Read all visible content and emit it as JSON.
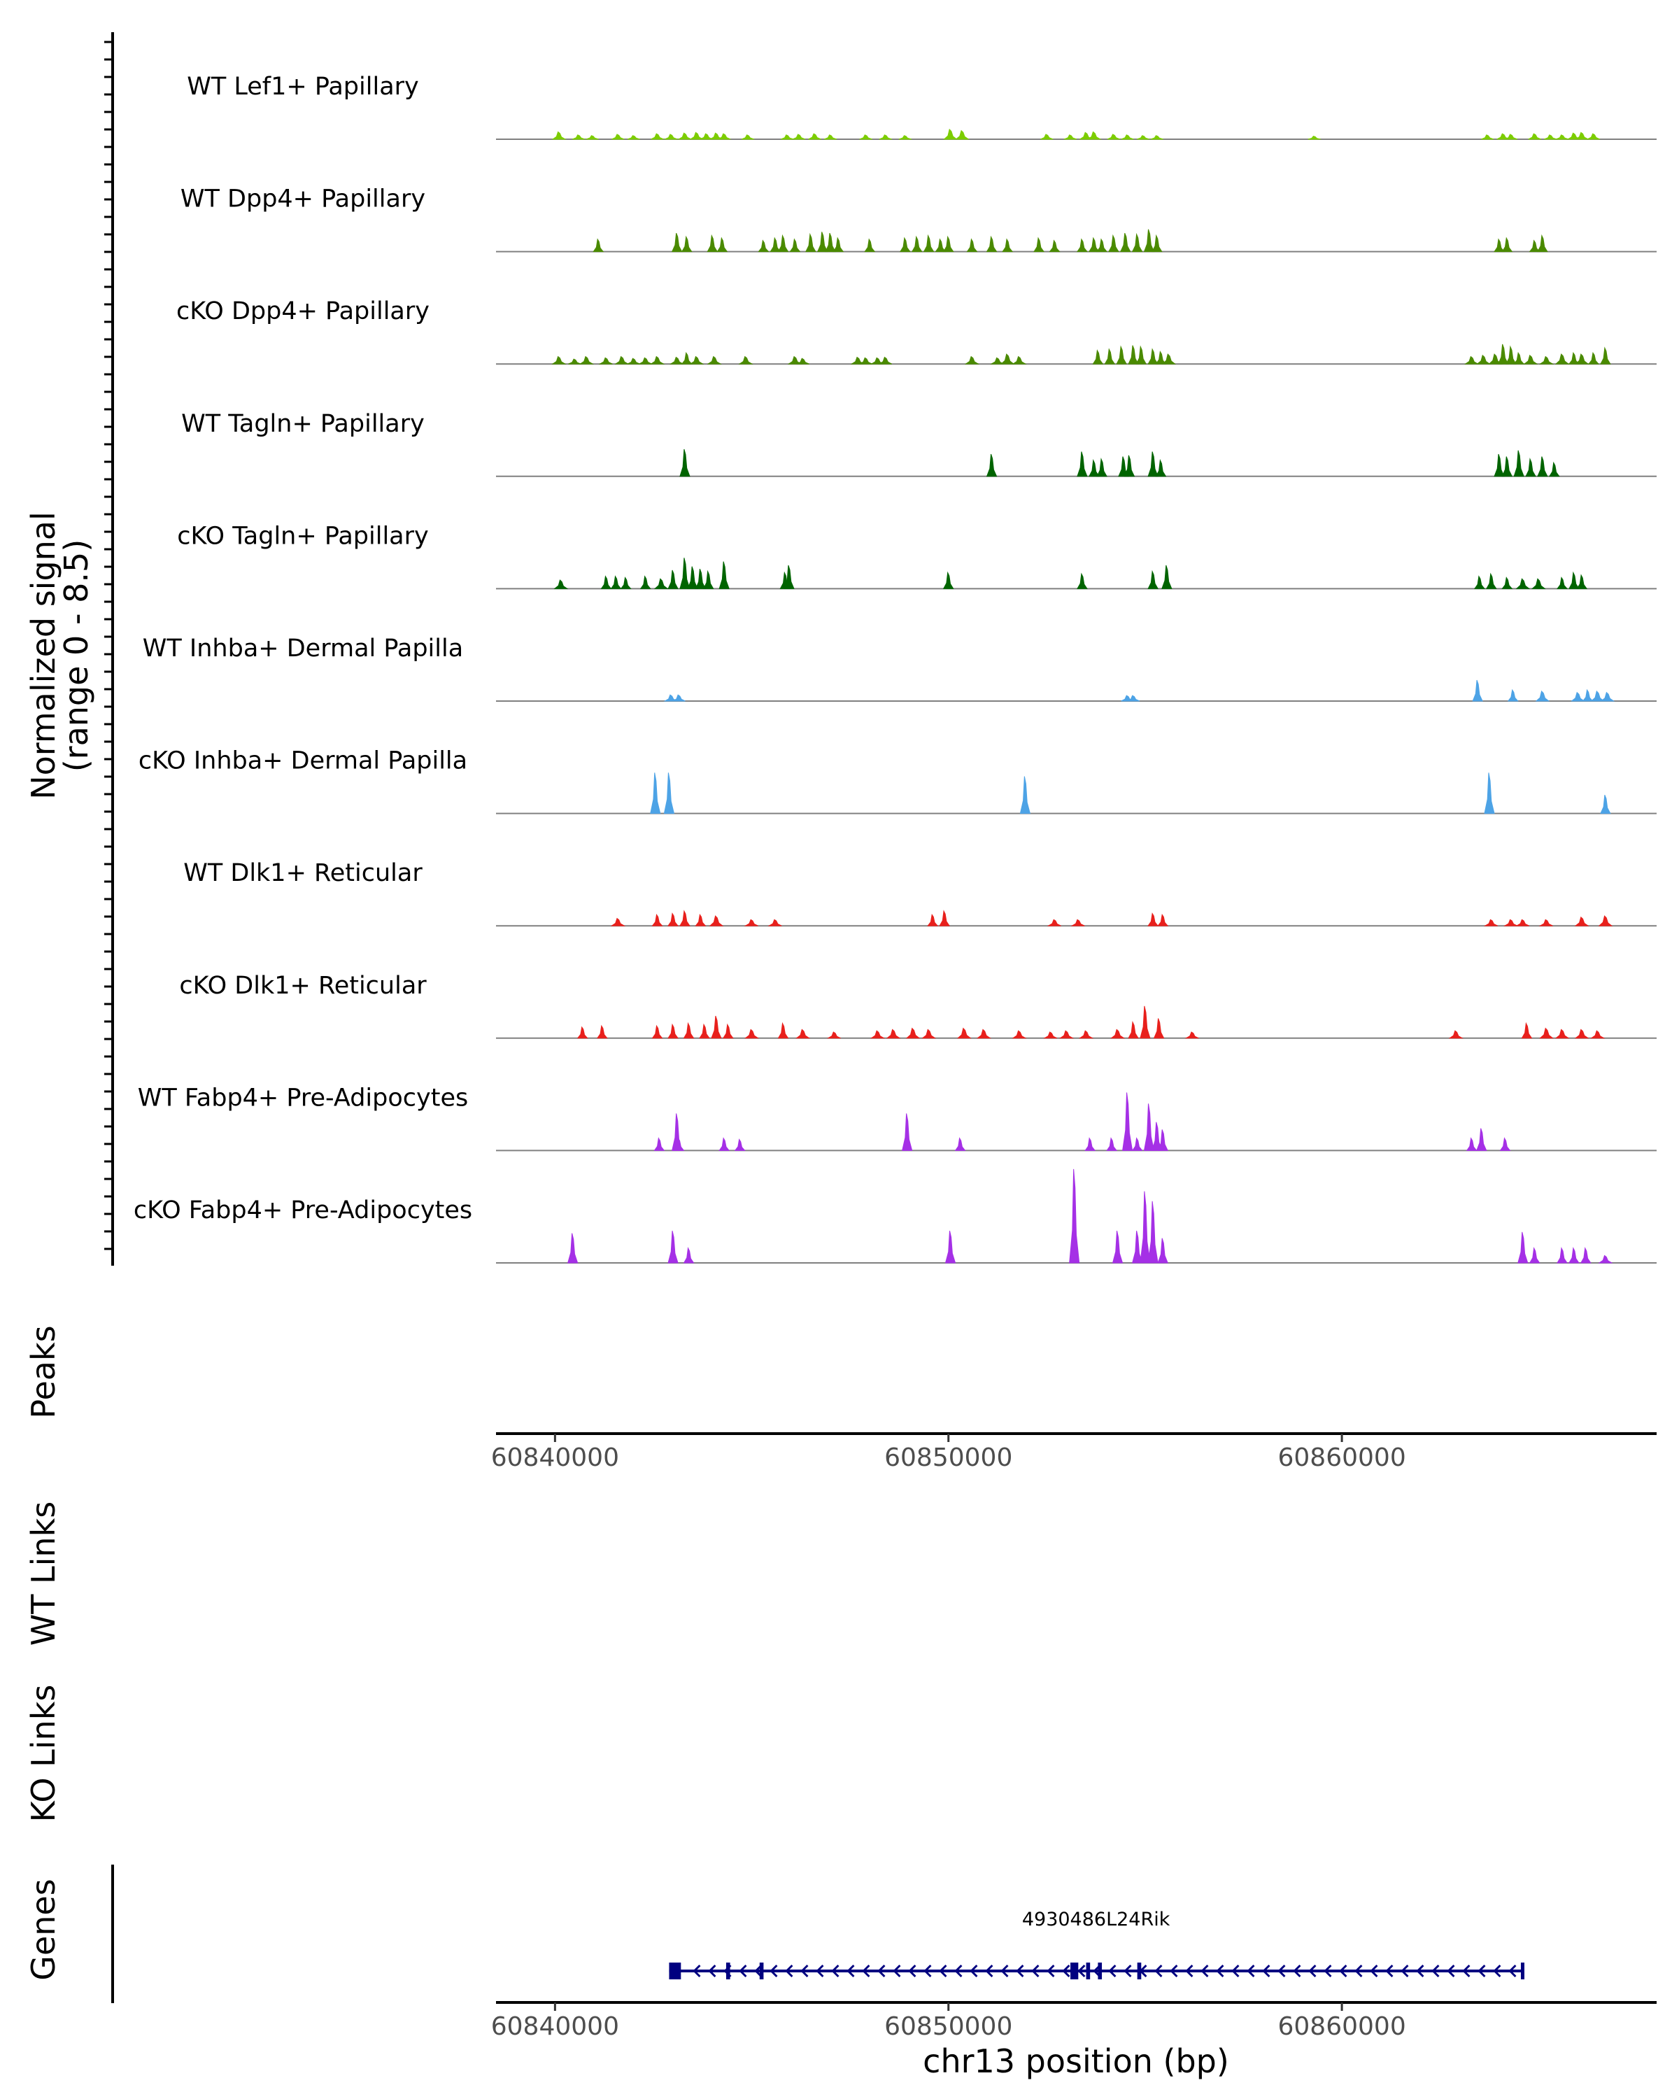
{
  "chart_data": {
    "type": "area",
    "title": "",
    "region": {
      "chromosome": "chr13",
      "start": 60838500,
      "end": 60868000
    },
    "xlabel": "chr13 position (bp)",
    "x_ticks": [
      60840000,
      60850000,
      60860000
    ],
    "x_tick_labels": [
      "60840000",
      "60850000",
      "60860000"
    ],
    "ylabel": "Normalized signal",
    "ylabel_range": "(range 0 - 8.5)",
    "ylim": [
      0,
      8.5
    ],
    "track_labels": {
      "peaks": "Peaks",
      "wt_links": "WT Links",
      "ko_links": "KO Links",
      "genes": "Genes"
    },
    "series": [
      {
        "name": "WT Lef1+ Papillary",
        "color": "#7CCD00",
        "peaks": [
          [
            60840100,
            0.6
          ],
          [
            60840600,
            0.35
          ],
          [
            60840950,
            0.3
          ],
          [
            60841600,
            0.4
          ],
          [
            60842000,
            0.3
          ],
          [
            60842600,
            0.45
          ],
          [
            60842950,
            0.4
          ],
          [
            60843300,
            0.5
          ],
          [
            60843600,
            0.55
          ],
          [
            60843850,
            0.45
          ],
          [
            60844100,
            0.5
          ],
          [
            60844300,
            0.45
          ],
          [
            60844900,
            0.35
          ],
          [
            60845900,
            0.35
          ],
          [
            60846200,
            0.4
          ],
          [
            60846600,
            0.45
          ],
          [
            60847000,
            0.35
          ],
          [
            60847900,
            0.35
          ],
          [
            60848400,
            0.35
          ],
          [
            60848900,
            0.3
          ],
          [
            60850050,
            0.8
          ],
          [
            60850350,
            0.7
          ],
          [
            60852500,
            0.4
          ],
          [
            60853100,
            0.35
          ],
          [
            60853500,
            0.55
          ],
          [
            60853700,
            0.6
          ],
          [
            60854200,
            0.4
          ],
          [
            60854550,
            0.35
          ],
          [
            60854950,
            0.3
          ],
          [
            60855300,
            0.3
          ],
          [
            60859300,
            0.25
          ],
          [
            60863700,
            0.35
          ],
          [
            60864100,
            0.45
          ],
          [
            60864300,
            0.4
          ],
          [
            60864900,
            0.45
          ],
          [
            60865300,
            0.35
          ],
          [
            60865600,
            0.35
          ],
          [
            60865900,
            0.5
          ],
          [
            60866100,
            0.55
          ],
          [
            60866400,
            0.45
          ]
        ]
      },
      {
        "name": "WT Dpp4+ Papillary",
        "color": "#4A8A00",
        "peaks": [
          [
            60841100,
            1.0
          ],
          [
            60843100,
            1.5
          ],
          [
            60843350,
            1.2
          ],
          [
            60844000,
            1.3
          ],
          [
            60844250,
            1.1
          ],
          [
            60845300,
            0.9
          ],
          [
            60845600,
            1.1
          ],
          [
            60845800,
            1.3
          ],
          [
            60846100,
            1.0
          ],
          [
            60846500,
            1.4
          ],
          [
            60846800,
            1.6
          ],
          [
            60847000,
            1.5
          ],
          [
            60847200,
            1.1
          ],
          [
            60848000,
            1.0
          ],
          [
            60848900,
            1.1
          ],
          [
            60849200,
            1.2
          ],
          [
            60849500,
            1.3
          ],
          [
            60849800,
            1.0
          ],
          [
            60850000,
            1.2
          ],
          [
            60850600,
            1.0
          ],
          [
            60851100,
            1.2
          ],
          [
            60851500,
            1.0
          ],
          [
            60852300,
            1.1
          ],
          [
            60852700,
            0.9
          ],
          [
            60853400,
            1.0
          ],
          [
            60853700,
            1.1
          ],
          [
            60853900,
            1.0
          ],
          [
            60854200,
            1.3
          ],
          [
            60854500,
            1.5
          ],
          [
            60854800,
            1.4
          ],
          [
            60855100,
            1.8
          ],
          [
            60855300,
            1.3
          ],
          [
            60864000,
            1.0
          ],
          [
            60864200,
            1.1
          ],
          [
            60864900,
            0.9
          ],
          [
            60865100,
            1.3
          ]
        ]
      },
      {
        "name": "cKO Dpp4+ Papillary",
        "color": "#4A8A00",
        "peaks": [
          [
            60840100,
            0.6
          ],
          [
            60840500,
            0.4
          ],
          [
            60840800,
            0.6
          ],
          [
            60841300,
            0.5
          ],
          [
            60841700,
            0.6
          ],
          [
            60842000,
            0.45
          ],
          [
            60842300,
            0.5
          ],
          [
            60842600,
            0.6
          ],
          [
            60843100,
            0.55
          ],
          [
            60843350,
            0.9
          ],
          [
            60843600,
            0.6
          ],
          [
            60844050,
            0.6
          ],
          [
            60844850,
            0.6
          ],
          [
            60846100,
            0.6
          ],
          [
            60846300,
            0.45
          ],
          [
            60847700,
            0.55
          ],
          [
            60847900,
            0.5
          ],
          [
            60848200,
            0.5
          ],
          [
            60848400,
            0.55
          ],
          [
            60850600,
            0.6
          ],
          [
            60851250,
            0.5
          ],
          [
            60851500,
            0.8
          ],
          [
            60851800,
            0.6
          ],
          [
            60853800,
            1.1
          ],
          [
            60854100,
            1.2
          ],
          [
            60854400,
            1.4
          ],
          [
            60854700,
            1.5
          ],
          [
            60854900,
            1.4
          ],
          [
            60855200,
            1.2
          ],
          [
            60855400,
            1.0
          ],
          [
            60855600,
            0.8
          ],
          [
            60863300,
            0.6
          ],
          [
            60863600,
            0.7
          ],
          [
            60863900,
            0.8
          ],
          [
            60864100,
            1.6
          ],
          [
            60864300,
            1.4
          ],
          [
            60864500,
            0.9
          ],
          [
            60864800,
            0.7
          ],
          [
            60865200,
            0.6
          ],
          [
            60865600,
            0.8
          ],
          [
            60865900,
            0.9
          ],
          [
            60866100,
            0.8
          ],
          [
            60866400,
            0.9
          ],
          [
            60866700,
            1.3
          ]
        ]
      },
      {
        "name": "WT Tagln+ Papillary",
        "color": "#006400",
        "peaks": [
          [
            60843300,
            2.2
          ],
          [
            60851100,
            1.8
          ],
          [
            60853400,
            2.0
          ],
          [
            60853700,
            1.3
          ],
          [
            60853900,
            1.4
          ],
          [
            60854450,
            1.6
          ],
          [
            60854600,
            1.7
          ],
          [
            60855200,
            2.0
          ],
          [
            60855400,
            1.3
          ],
          [
            60864000,
            1.8
          ],
          [
            60864200,
            1.6
          ],
          [
            60864500,
            2.1
          ],
          [
            60864800,
            1.4
          ],
          [
            60865100,
            1.6
          ],
          [
            60865400,
            1.1
          ]
        ]
      },
      {
        "name": "cKO Tagln+ Papillary",
        "color": "#006400",
        "peaks": [
          [
            60840150,
            0.7
          ],
          [
            60841300,
            1.0
          ],
          [
            60841550,
            1.0
          ],
          [
            60841800,
            0.9
          ],
          [
            60842300,
            1.0
          ],
          [
            60842700,
            0.8
          ],
          [
            60843000,
            1.5
          ],
          [
            60843300,
            2.5
          ],
          [
            60843500,
            1.8
          ],
          [
            60843700,
            1.6
          ],
          [
            60843900,
            1.4
          ],
          [
            60844300,
            2.2
          ],
          [
            60845950,
            1.9
          ],
          [
            60845850,
            1.3
          ],
          [
            60850000,
            1.3
          ],
          [
            60853400,
            1.2
          ],
          [
            60855200,
            1.4
          ],
          [
            60855550,
            1.9
          ],
          [
            60863500,
            1.0
          ],
          [
            60863800,
            1.2
          ],
          [
            60864200,
            0.9
          ],
          [
            60864600,
            0.8
          ],
          [
            60865000,
            0.8
          ],
          [
            60865600,
            0.9
          ],
          [
            60865900,
            1.3
          ],
          [
            60866100,
            1.1
          ]
        ]
      },
      {
        "name": "WT Inhba+ Dermal Papilla",
        "color": "#4DA3E6",
        "peaks": [
          [
            60842950,
            0.5
          ],
          [
            60843150,
            0.5
          ],
          [
            60854550,
            0.45
          ],
          [
            60854700,
            0.45
          ],
          [
            60863450,
            1.7
          ],
          [
            60864350,
            0.9
          ],
          [
            60865100,
            0.8
          ],
          [
            60866000,
            0.7
          ],
          [
            60866250,
            0.9
          ],
          [
            60866500,
            0.8
          ],
          [
            60866750,
            0.7
          ]
        ]
      },
      {
        "name": "cKO Inhba+ Dermal Papilla",
        "color": "#4DA3E6",
        "peaks": [
          [
            60842550,
            3.3
          ],
          [
            60842900,
            3.3
          ],
          [
            60851950,
            3.0
          ],
          [
            60863750,
            3.3
          ],
          [
            60866700,
            1.5
          ]
        ]
      },
      {
        "name": "WT Dlk1+ Reticular",
        "color": "#E8201C",
        "peaks": [
          [
            60841600,
            0.6
          ],
          [
            60842600,
            0.9
          ],
          [
            60843000,
            1.0
          ],
          [
            60843300,
            1.2
          ],
          [
            60843700,
            0.9
          ],
          [
            60844100,
            0.8
          ],
          [
            60845000,
            0.5
          ],
          [
            60845600,
            0.5
          ],
          [
            60849600,
            0.9
          ],
          [
            60849900,
            1.2
          ],
          [
            60852700,
            0.5
          ],
          [
            60853300,
            0.5
          ],
          [
            60855200,
            1.0
          ],
          [
            60855450,
            0.9
          ],
          [
            60863800,
            0.5
          ],
          [
            60864300,
            0.5
          ],
          [
            60864600,
            0.5
          ],
          [
            60865200,
            0.5
          ],
          [
            60866100,
            0.7
          ],
          [
            60866700,
            0.8
          ]
        ]
      },
      {
        "name": "cKO Dlk1+ Reticular",
        "color": "#E8201C",
        "peaks": [
          [
            60840700,
            0.9
          ],
          [
            60841200,
            1.0
          ],
          [
            60842600,
            1.0
          ],
          [
            60843000,
            1.1
          ],
          [
            60843400,
            1.2
          ],
          [
            60843800,
            1.1
          ],
          [
            60844100,
            1.8
          ],
          [
            60844400,
            1.1
          ],
          [
            60845000,
            0.7
          ],
          [
            60845800,
            1.2
          ],
          [
            60846300,
            0.7
          ],
          [
            60847100,
            0.5
          ],
          [
            60848200,
            0.6
          ],
          [
            60848600,
            0.7
          ],
          [
            60849100,
            0.8
          ],
          [
            60849500,
            0.7
          ],
          [
            60850400,
            0.8
          ],
          [
            60850900,
            0.7
          ],
          [
            60851800,
            0.6
          ],
          [
            60852600,
            0.5
          ],
          [
            60853000,
            0.6
          ],
          [
            60853500,
            0.6
          ],
          [
            60854300,
            0.7
          ],
          [
            60854700,
            1.3
          ],
          [
            60855000,
            2.6
          ],
          [
            60855350,
            1.6
          ],
          [
            60856200,
            0.5
          ],
          [
            60862900,
            0.6
          ],
          [
            60864700,
            1.2
          ],
          [
            60865200,
            0.8
          ],
          [
            60865600,
            0.7
          ],
          [
            60866100,
            0.7
          ],
          [
            60866500,
            0.6
          ]
        ]
      },
      {
        "name": "WT Fabp4+ Pre-Adipocytes",
        "color": "#A530E6",
        "peaks": [
          [
            60842650,
            1.0
          ],
          [
            60843150,
            1.0
          ],
          [
            60843100,
            3.0
          ],
          [
            60844300,
            1.0
          ],
          [
            60844700,
            0.9
          ],
          [
            60848950,
            3.0
          ],
          [
            60850300,
            1.0
          ],
          [
            60853600,
            1.0
          ],
          [
            60854150,
            1.0
          ],
          [
            60854550,
            4.7
          ],
          [
            60854800,
            1.0
          ],
          [
            60855100,
            3.8
          ],
          [
            60855300,
            2.3
          ],
          [
            60855450,
            1.7
          ],
          [
            60863300,
            1.0
          ],
          [
            60863550,
            1.8
          ],
          [
            60864150,
            1.0
          ]
        ]
      },
      {
        "name": "cKO Fabp4+ Pre-Adipocytes",
        "color": "#A530E6",
        "peaks": [
          [
            60840450,
            2.4
          ],
          [
            60843000,
            2.6
          ],
          [
            60843400,
            1.2
          ],
          [
            60850050,
            2.6
          ],
          [
            60853200,
            7.6
          ],
          [
            60854300,
            2.6
          ],
          [
            60854800,
            2.6
          ],
          [
            60855000,
            5.8
          ],
          [
            60855200,
            5.0
          ],
          [
            60855450,
            2.0
          ],
          [
            60864600,
            2.5
          ],
          [
            60864900,
            1.2
          ],
          [
            60865600,
            1.2
          ],
          [
            60865900,
            1.2
          ],
          [
            60866200,
            1.2
          ],
          [
            60866700,
            0.6
          ]
        ]
      }
    ],
    "gene": {
      "name": "4930486L24Rik",
      "strand": "-",
      "start": 60842900,
      "end": 60864600,
      "exons": [
        [
          60842900,
          60843200
        ],
        [
          60844350,
          60844450
        ],
        [
          60845200,
          60845300
        ],
        [
          60853100,
          60853300
        ],
        [
          60853500,
          60853600
        ],
        [
          60853800,
          60853900
        ],
        [
          60854800,
          60854900
        ],
        [
          60864550,
          60864600
        ]
      ]
    }
  }
}
